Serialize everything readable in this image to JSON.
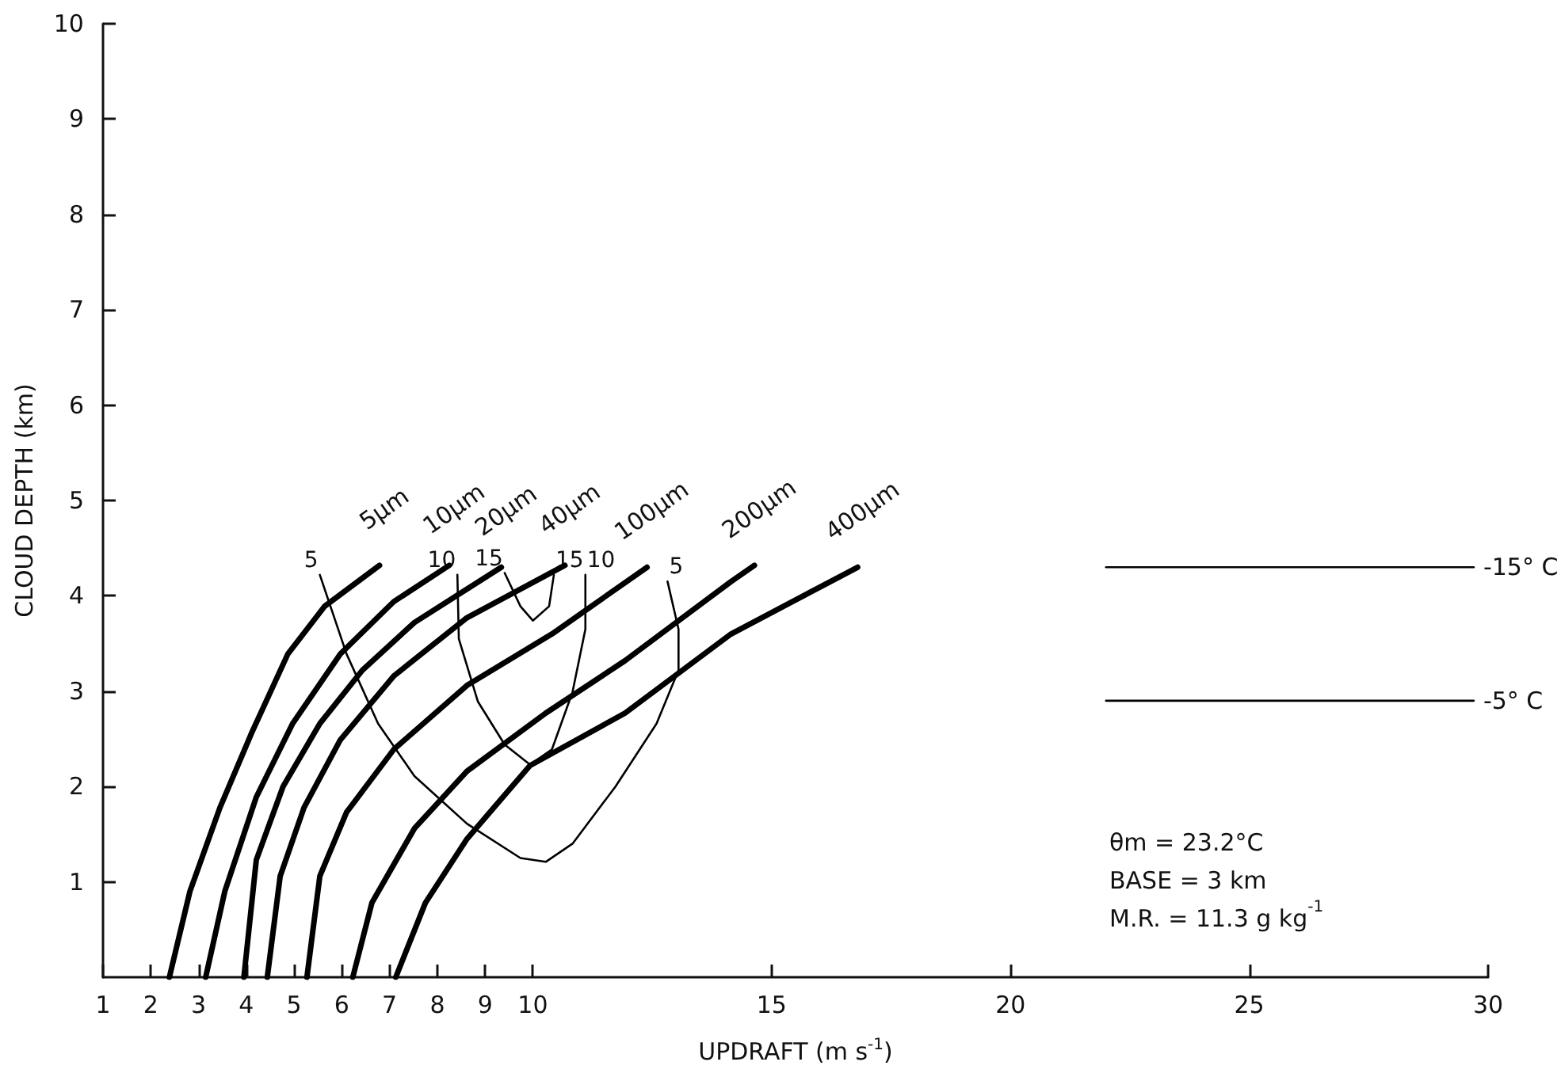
{
  "chart_data": {
    "type": "line",
    "xlabel": "UPDRAFT (m s$^{-1}$)",
    "ylabel": "CLOUD DEPTH (km)",
    "xlim": [
      1,
      30
    ],
    "xticks": [
      1,
      2,
      3,
      4,
      5,
      6,
      7,
      8,
      9,
      10,
      15,
      20,
      25,
      30
    ],
    "ylim": [
      0,
      10
    ],
    "yticks": [
      1,
      2,
      3,
      4,
      5,
      6,
      7,
      8,
      9,
      10
    ],
    "grid": false,
    "legend": false,
    "marker": "none",
    "line_style": "solid",
    "annotations": [
      "θm = 23.2°C",
      "BASE = 3 km",
      "M.R. = 11.3 g kg$^{-1}$"
    ],
    "series": [
      {
        "name": "5μm",
        "color": "#000000",
        "x": [
          2.39,
          2.82,
          3.45,
          4.11,
          4.87,
          5.64,
          6.79
        ],
        "values": [
          0,
          0.9,
          1.78,
          2.56,
          3.39,
          3.89,
          4.32
        ]
      },
      {
        "name": "10μm",
        "color": "#000000",
        "x": [
          3.15,
          3.55,
          4.21,
          4.97,
          5.97,
          7.09,
          8.25
        ],
        "values": [
          0,
          0.9,
          1.89,
          2.66,
          3.39,
          3.94,
          4.32
        ]
      },
      {
        "name": "20μm",
        "color": "#000000",
        "x": [
          3.95,
          4.21,
          4.77,
          5.54,
          6.43,
          7.52,
          9.34
        ],
        "values": [
          0,
          1.23,
          2.0,
          2.66,
          3.22,
          3.72,
          4.3
        ]
      },
      {
        "name": "40μm",
        "color": "#000000",
        "x": [
          4.44,
          4.71,
          5.21,
          5.97,
          7.09,
          8.62,
          10.67
        ],
        "values": [
          0,
          1.06,
          1.78,
          2.49,
          3.16,
          3.77,
          4.32
        ]
      },
      {
        "name": "100μm",
        "color": "#000000",
        "x": [
          5.27,
          5.54,
          6.1,
          7.09,
          8.62,
          10.4,
          12.39
        ],
        "values": [
          0,
          1.06,
          1.73,
          2.39,
          3.06,
          3.6,
          4.3
        ]
      },
      {
        "name": "200μm",
        "color": "#000000",
        "x": [
          6.23,
          6.63,
          7.52,
          8.62,
          10.27,
          11.93,
          14.15,
          14.64
        ],
        "values": [
          0,
          0.78,
          1.56,
          2.16,
          2.77,
          3.32,
          4.15,
          4.32
        ]
      },
      {
        "name": "400μm",
        "color": "#000000",
        "x": [
          7.13,
          7.75,
          8.62,
          9.94,
          11.93,
          14.15,
          16.8
        ],
        "values": [
          0,
          0.78,
          1.45,
          2.22,
          2.77,
          3.6,
          4.3
        ]
      },
      {
        "name": "5",
        "color": "#000000",
        "x": [
          5.54,
          6.1,
          6.76,
          7.52,
          8.62,
          9.74,
          10.27,
          10.83,
          11.73,
          12.59,
          13.05,
          13.05,
          12.82
        ],
        "values": [
          4.22,
          3.39,
          2.66,
          2.11,
          1.61,
          1.25,
          1.21,
          1.4,
          2.0,
          2.66,
          3.22,
          3.65,
          4.15
        ]
      },
      {
        "name": "10",
        "color": "#000000",
        "x": [
          8.42,
          8.45,
          8.85,
          9.41,
          9.94,
          10.4,
          10.83,
          11.1,
          11.1
        ],
        "values": [
          4.22,
          3.55,
          2.89,
          2.44,
          2.23,
          2.39,
          2.99,
          3.65,
          4.22
        ]
      },
      {
        "name": "15",
        "color": "#000000",
        "x": [
          9.41,
          9.74,
          10.0,
          10.34,
          10.44
        ],
        "values": [
          4.24,
          3.89,
          3.74,
          3.89,
          4.22
        ]
      },
      {
        "name": "-15° C",
        "color": "#000000",
        "x": [
          22,
          29.7
        ],
        "values": [
          4.3,
          4.3
        ]
      },
      {
        "name": "-5° C",
        "color": "#000000",
        "x": [
          22,
          29.7
        ],
        "values": [
          2.9,
          2.9
        ]
      }
    ]
  }
}
